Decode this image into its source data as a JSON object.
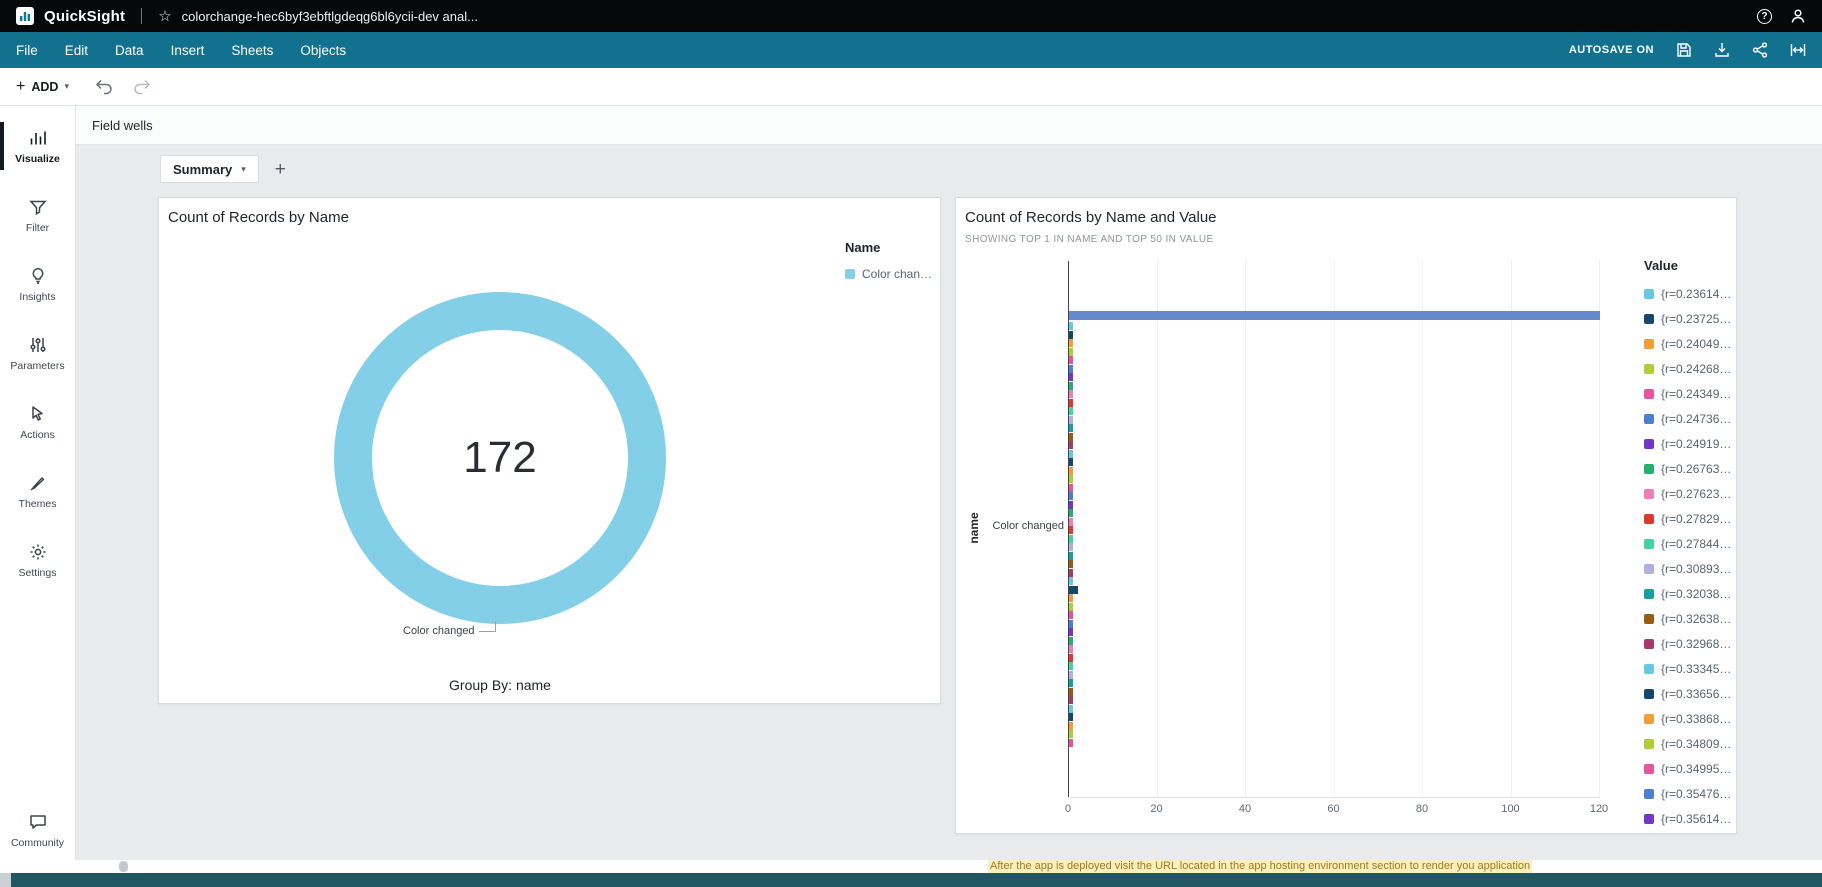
{
  "colors": {
    "topbar_bg": "#060809",
    "menubar_bg": "#11718F",
    "canvas_bg": "#E9EBEC",
    "donut": "#83CFE8",
    "big_bar": "#6589CB",
    "bottom_teal": "#235663",
    "active_indicator": "#16191F"
  },
  "palette": [
    "#69C8E1",
    "#17486B",
    "#F29D38",
    "#AECD39",
    "#E6549D",
    "#4C7FD0",
    "#7237C8",
    "#27AE71",
    "#F07EB6",
    "#DC3A2F",
    "#40D3A6",
    "#AFAFE0",
    "#13A0A0",
    "#9A5B13",
    "#A83A66"
  ],
  "topbar": {
    "app_name": "QuickSight",
    "doc_title": "colorchange-hec6byf3ebftlgdeqg6bl6ycii-dev anal..."
  },
  "menubar": {
    "items": [
      "File",
      "Edit",
      "Data",
      "Insert",
      "Sheets",
      "Objects"
    ],
    "autosave": "AUTOSAVE ON"
  },
  "toolbar": {
    "add_label": "ADD"
  },
  "sidebar": {
    "items": [
      {
        "label": "Visualize",
        "active": true
      },
      {
        "label": "Filter"
      },
      {
        "label": "Insights"
      },
      {
        "label": "Parameters"
      },
      {
        "label": "Actions"
      },
      {
        "label": "Themes"
      },
      {
        "label": "Settings"
      }
    ],
    "community": "Community"
  },
  "fieldwells": {
    "label": "Field wells"
  },
  "tabs": {
    "active": "Summary"
  },
  "background": {
    "text": "After the app is deployed visit the URL located in the app hosting environment section to render you application"
  },
  "chart_data": [
    {
      "type": "donut",
      "title": "Count of Records by Name",
      "categories": [
        "Color changed"
      ],
      "values": [
        172
      ],
      "total_label": "172",
      "group_by": "Group By: name",
      "legend_title": "Name",
      "legend_items": [
        "Color chan…"
      ],
      "legend_position": "right"
    },
    {
      "type": "bar",
      "orientation": "horizontal",
      "title": "Count of Records by Name and Value",
      "subtitle": "SHOWING TOP 1 IN NAME AND TOP 50 IN VALUE",
      "ylabel": "name",
      "category": "Color changed",
      "x_ticks": [
        0,
        20,
        40,
        60,
        80,
        100,
        120
      ],
      "xlim": [
        0,
        120
      ],
      "top_bar_value": 120,
      "small_bars": {
        "count": 50,
        "value": 1,
        "wide_value": 2,
        "wide_indices": [
          31
        ]
      },
      "legend_title": "Value",
      "legend_position": "right",
      "legend_labels": [
        "{r=0.23614…",
        "{r=0.23725…",
        "{r=0.24049…",
        "{r=0.24268…",
        "{r=0.24349…",
        "{r=0.24736…",
        "{r=0.24919…",
        "{r=0.26763…",
        "{r=0.27623…",
        "{r=0.27829…",
        "{r=0.27844…",
        "{r=0.30893…",
        "{r=0.32038…",
        "{r=0.32638…",
        "{r=0.32968…",
        "{r=0.33345…",
        "{r=0.33656…",
        "{r=0.33868…",
        "{r=0.34809…",
        "{r=0.34995…",
        "{r=0.35476…",
        "{r=0.35614…"
      ]
    }
  ]
}
